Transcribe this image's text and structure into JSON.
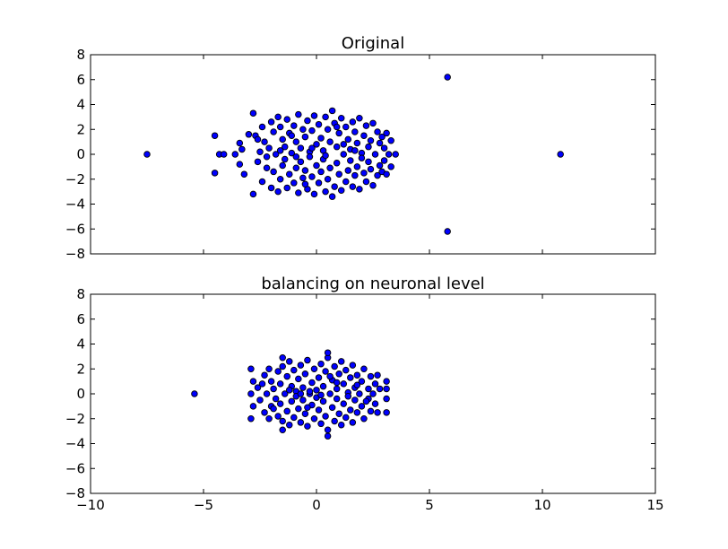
{
  "chart_data": [
    {
      "type": "scatter",
      "title": "Original",
      "xlabel": "",
      "ylabel": "",
      "xlim": [
        -10,
        15
      ],
      "ylim": [
        -8,
        8
      ],
      "xticks": [],
      "yticks": [
        "8",
        "6",
        "4",
        "2",
        "0",
        "−2",
        "−4",
        "−6",
        "−8"
      ],
      "marker_color": "#0000ff",
      "marker_edge": "#000000",
      "points": [
        [
          -7.5,
          0.0
        ],
        [
          -4.5,
          1.5
        ],
        [
          -4.5,
          -1.5
        ],
        [
          -4.3,
          0.0
        ],
        [
          -4.1,
          0.0
        ],
        [
          -3.6,
          0.0
        ],
        [
          5.8,
          6.2
        ],
        [
          5.8,
          -6.2
        ],
        [
          10.8,
          0.0
        ],
        [
          -3.4,
          0.9
        ],
        [
          -3.4,
          -0.8
        ],
        [
          -3.3,
          0.4
        ],
        [
          -3.2,
          -1.6
        ],
        [
          -3.0,
          1.6
        ],
        [
          -2.8,
          3.3
        ],
        [
          -2.8,
          -3.2
        ],
        [
          -2.7,
          1.5
        ],
        [
          -2.6,
          -0.6
        ],
        [
          -2.5,
          0.2
        ],
        [
          -2.4,
          2.2
        ],
        [
          -2.4,
          -2.2
        ],
        [
          -2.3,
          1.0
        ],
        [
          -2.2,
          -1.1
        ],
        [
          -2.1,
          0.5
        ],
        [
          -2.0,
          2.6
        ],
        [
          -2.0,
          -2.7
        ],
        [
          -1.9,
          1.8
        ],
        [
          -1.9,
          -1.4
        ],
        [
          -1.8,
          0.0
        ],
        [
          -1.7,
          3.0
        ],
        [
          -1.7,
          -3.0
        ],
        [
          -1.6,
          2.2
        ],
        [
          -1.6,
          -2.0
        ],
        [
          -1.5,
          1.2
        ],
        [
          -1.5,
          -0.9
        ],
        [
          -1.4,
          0.6
        ],
        [
          -1.4,
          -0.4
        ],
        [
          -1.3,
          2.8
        ],
        [
          -1.3,
          -2.7
        ],
        [
          -1.2,
          1.7
        ],
        [
          -1.2,
          -1.6
        ],
        [
          -1.1,
          0.1
        ],
        [
          -1.0,
          2.3
        ],
        [
          -1.0,
          -2.3
        ],
        [
          -0.9,
          1.0
        ],
        [
          -0.9,
          -1.1
        ],
        [
          -0.8,
          3.2
        ],
        [
          -0.8,
          -3.1
        ],
        [
          -0.7,
          0.5
        ],
        [
          -0.7,
          -0.6
        ],
        [
          -0.6,
          2.0
        ],
        [
          -0.6,
          -1.9
        ],
        [
          -0.5,
          1.4
        ],
        [
          -0.5,
          -1.3
        ],
        [
          -0.4,
          2.7
        ],
        [
          -0.4,
          -2.8
        ],
        [
          -0.3,
          0.2
        ],
        [
          -0.3,
          -0.2
        ],
        [
          -0.2,
          1.9
        ],
        [
          -0.2,
          -1.8
        ],
        [
          -0.1,
          3.1
        ],
        [
          -0.1,
          -3.2
        ],
        [
          0.0,
          0.8
        ],
        [
          0.0,
          -0.9
        ],
        [
          0.1,
          2.4
        ],
        [
          0.1,
          -2.3
        ],
        [
          0.2,
          1.3
        ],
        [
          0.2,
          -1.4
        ],
        [
          0.3,
          0.3
        ],
        [
          0.3,
          -0.4
        ],
        [
          0.4,
          3.0
        ],
        [
          0.4,
          -3.0
        ],
        [
          0.5,
          2.0
        ],
        [
          0.5,
          -2.0
        ],
        [
          0.6,
          1.0
        ],
        [
          0.6,
          -1.1
        ],
        [
          0.7,
          3.5
        ],
        [
          0.7,
          -3.4
        ],
        [
          0.8,
          2.5
        ],
        [
          0.8,
          -2.6
        ],
        [
          0.9,
          0.6
        ],
        [
          0.9,
          -0.7
        ],
        [
          1.0,
          1.7
        ],
        [
          1.0,
          -1.6
        ],
        [
          1.1,
          2.9
        ],
        [
          1.1,
          -2.9
        ],
        [
          1.2,
          0.0
        ],
        [
          1.3,
          2.2
        ],
        [
          1.3,
          -2.2
        ],
        [
          1.4,
          1.2
        ],
        [
          1.4,
          -1.3
        ],
        [
          1.5,
          0.4
        ],
        [
          1.5,
          -0.5
        ],
        [
          1.6,
          2.6
        ],
        [
          1.6,
          -2.6
        ],
        [
          1.7,
          1.8
        ],
        [
          1.7,
          -1.7
        ],
        [
          1.8,
          0.9
        ],
        [
          1.8,
          -1.0
        ],
        [
          1.9,
          2.9
        ],
        [
          1.9,
          -2.8
        ],
        [
          2.0,
          0.1
        ],
        [
          2.1,
          1.5
        ],
        [
          2.1,
          -1.5
        ],
        [
          2.2,
          2.3
        ],
        [
          2.2,
          -2.2
        ],
        [
          2.3,
          0.6
        ],
        [
          2.3,
          -0.6
        ],
        [
          2.4,
          1.1
        ],
        [
          2.4,
          -1.2
        ],
        [
          2.5,
          2.5
        ],
        [
          2.5,
          -2.5
        ],
        [
          2.6,
          0.0
        ],
        [
          2.7,
          1.8
        ],
        [
          2.7,
          -1.7
        ],
        [
          2.8,
          0.9
        ],
        [
          2.8,
          -0.9
        ],
        [
          2.9,
          1.4
        ],
        [
          2.9,
          -1.4
        ],
        [
          3.0,
          0.5
        ],
        [
          3.0,
          -0.5
        ],
        [
          3.1,
          1.7
        ],
        [
          3.1,
          -1.6
        ],
        [
          3.2,
          0.0
        ],
        [
          3.3,
          1.1
        ],
        [
          3.3,
          -1.0
        ],
        [
          3.5,
          0.0
        ],
        [
          -0.2,
          0.5
        ],
        [
          0.4,
          -0.1
        ],
        [
          -0.9,
          -0.2
        ],
        [
          1.2,
          0.8
        ],
        [
          -1.6,
          0.3
        ],
        [
          2.0,
          -0.3
        ],
        [
          -2.6,
          1.2
        ],
        [
          -2.2,
          -0.2
        ],
        [
          -0.5,
          -2.4
        ],
        [
          0.9,
          2.2
        ],
        [
          1.7,
          0.3
        ],
        [
          -1.1,
          1.5
        ]
      ]
    },
    {
      "type": "scatter",
      "title": "balancing on neuronal level",
      "xlabel": "",
      "ylabel": "",
      "xlim": [
        -10,
        15
      ],
      "ylim": [
        -8,
        8
      ],
      "xticks": [
        "−10",
        "−5",
        "0",
        "5",
        "10",
        "15"
      ],
      "yticks": [
        "8",
        "6",
        "4",
        "2",
        "0",
        "−2",
        "−4",
        "−6",
        "−8"
      ],
      "marker_color": "#0000ff",
      "marker_edge": "#000000",
      "points": [
        [
          -5.4,
          0.0
        ],
        [
          -2.9,
          2.0
        ],
        [
          -2.9,
          -2.0
        ],
        [
          -2.9,
          0.0
        ],
        [
          -2.8,
          1.0
        ],
        [
          -2.8,
          -1.0
        ],
        [
          -2.6,
          0.5
        ],
        [
          -2.5,
          -0.5
        ],
        [
          -2.3,
          1.5
        ],
        [
          -2.3,
          -1.5
        ],
        [
          -2.2,
          0.0
        ],
        [
          -2.1,
          2.0
        ],
        [
          -2.1,
          -2.0
        ],
        [
          -2.0,
          1.0
        ],
        [
          -2.0,
          -1.0
        ],
        [
          -1.9,
          0.4
        ],
        [
          -1.8,
          -0.4
        ],
        [
          -1.7,
          1.8
        ],
        [
          -1.7,
          -1.8
        ],
        [
          -1.6,
          0.8
        ],
        [
          -1.6,
          -0.8
        ],
        [
          -1.5,
          2.2
        ],
        [
          -1.5,
          -2.2
        ],
        [
          -1.4,
          0.0
        ],
        [
          -1.3,
          1.4
        ],
        [
          -1.3,
          -1.4
        ],
        [
          -1.2,
          2.6
        ],
        [
          -1.2,
          -2.5
        ],
        [
          -1.1,
          0.6
        ],
        [
          -1.1,
          -0.6
        ],
        [
          -1.0,
          1.9
        ],
        [
          -1.0,
          -1.9
        ],
        [
          -0.9,
          0.2
        ],
        [
          -0.9,
          -0.2
        ],
        [
          -0.8,
          1.2
        ],
        [
          -0.8,
          -1.2
        ],
        [
          -0.7,
          2.3
        ],
        [
          -0.7,
          -2.3
        ],
        [
          -0.6,
          0.5
        ],
        [
          -0.6,
          -0.5
        ],
        [
          -0.5,
          1.6
        ],
        [
          -0.5,
          -1.6
        ],
        [
          -0.4,
          2.7
        ],
        [
          -0.4,
          -2.6
        ],
        [
          -0.3,
          0.0
        ],
        [
          -0.2,
          0.9
        ],
        [
          -0.2,
          -0.9
        ],
        [
          -0.1,
          2.0
        ],
        [
          -0.1,
          -2.0
        ],
        [
          0.0,
          0.3
        ],
        [
          0.0,
          -0.3
        ],
        [
          0.1,
          1.3
        ],
        [
          0.1,
          -1.3
        ],
        [
          0.2,
          2.4
        ],
        [
          0.2,
          -2.4
        ],
        [
          0.3,
          0.6
        ],
        [
          0.3,
          -0.6
        ],
        [
          0.4,
          1.8
        ],
        [
          0.4,
          -1.8
        ],
        [
          0.5,
          2.9
        ],
        [
          0.5,
          -2.9
        ],
        [
          0.6,
          0.0
        ],
        [
          0.7,
          1.1
        ],
        [
          0.7,
          -1.1
        ],
        [
          0.8,
          2.2
        ],
        [
          0.8,
          -2.2
        ],
        [
          0.9,
          0.4
        ],
        [
          0.9,
          -0.4
        ],
        [
          1.0,
          1.6
        ],
        [
          1.0,
          -1.6
        ],
        [
          1.1,
          2.6
        ],
        [
          1.1,
          -2.5
        ],
        [
          1.2,
          0.8
        ],
        [
          1.2,
          -0.8
        ],
        [
          1.3,
          1.9
        ],
        [
          1.3,
          -1.9
        ],
        [
          1.4,
          0.1
        ],
        [
          1.5,
          1.3
        ],
        [
          1.5,
          -1.3
        ],
        [
          1.6,
          2.3
        ],
        [
          1.6,
          -2.3
        ],
        [
          1.7,
          0.5
        ],
        [
          1.7,
          -0.5
        ],
        [
          1.8,
          1.5
        ],
        [
          1.8,
          -1.5
        ],
        [
          1.9,
          0.0
        ],
        [
          2.0,
          1.0
        ],
        [
          2.0,
          -1.0
        ],
        [
          2.1,
          2.0
        ],
        [
          2.1,
          -2.0
        ],
        [
          2.3,
          0.4
        ],
        [
          2.3,
          -0.4
        ],
        [
          2.4,
          1.4
        ],
        [
          2.4,
          -1.4
        ],
        [
          2.5,
          0.0
        ],
        [
          2.6,
          0.8
        ],
        [
          2.6,
          -0.8
        ],
        [
          2.7,
          1.5
        ],
        [
          2.7,
          -1.5
        ],
        [
          2.8,
          0.4
        ],
        [
          3.1,
          0.4
        ],
        [
          3.1,
          -0.4
        ],
        [
          3.1,
          1.0
        ],
        [
          3.1,
          -1.5
        ],
        [
          -1.5,
          2.9
        ],
        [
          -1.5,
          -2.9
        ],
        [
          0.5,
          3.3
        ],
        [
          0.5,
          -3.4
        ],
        [
          -0.3,
          0.2
        ],
        [
          0.2,
          -0.1
        ],
        [
          -0.7,
          0.0
        ],
        [
          0.9,
          0.9
        ],
        [
          -1.2,
          0.3
        ],
        [
          1.4,
          -0.2
        ],
        [
          -2.4,
          0.8
        ],
        [
          2.2,
          -0.6
        ],
        [
          -0.4,
          -1.1
        ],
        [
          0.6,
          1.4
        ],
        [
          -1.9,
          -1.2
        ],
        [
          1.8,
          0.7
        ]
      ]
    }
  ]
}
